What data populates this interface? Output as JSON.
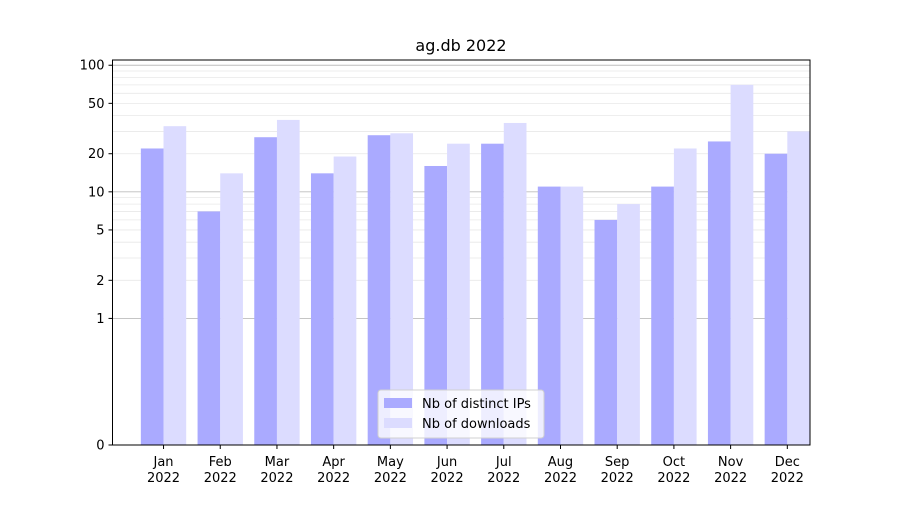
{
  "chart_data": {
    "type": "bar",
    "title": "ag.db 2022",
    "xlabel": "",
    "ylabel": "",
    "y_scale": "symlog",
    "ylim": [
      0,
      110
    ],
    "y_ticks": [
      {
        "value": 0,
        "label": "0"
      },
      {
        "value": 1,
        "label": "1"
      },
      {
        "value": 2,
        "label": "2"
      },
      {
        "value": 5,
        "label": "5"
      },
      {
        "value": 10,
        "label": "10"
      },
      {
        "value": 20,
        "label": "20"
      },
      {
        "value": 50,
        "label": "50"
      },
      {
        "value": 100,
        "label": "100"
      }
    ],
    "grid": true,
    "legend_position": "bottom-center",
    "categories": [
      {
        "month": "Jan",
        "year": "2022"
      },
      {
        "month": "Feb",
        "year": "2022"
      },
      {
        "month": "Mar",
        "year": "2022"
      },
      {
        "month": "Apr",
        "year": "2022"
      },
      {
        "month": "May",
        "year": "2022"
      },
      {
        "month": "Jun",
        "year": "2022"
      },
      {
        "month": "Jul",
        "year": "2022"
      },
      {
        "month": "Aug",
        "year": "2022"
      },
      {
        "month": "Sep",
        "year": "2022"
      },
      {
        "month": "Oct",
        "year": "2022"
      },
      {
        "month": "Nov",
        "year": "2022"
      },
      {
        "month": "Dec",
        "year": "2022"
      }
    ],
    "series": [
      {
        "name": "Nb of distinct IPs",
        "color": "#aaaaff",
        "values": [
          22,
          7,
          27,
          14,
          28,
          16,
          24,
          11,
          6,
          11,
          25,
          20
        ]
      },
      {
        "name": "Nb of downloads",
        "color": "#dcdcff",
        "values": [
          33,
          14,
          37,
          19,
          29,
          24,
          35,
          11,
          8,
          22,
          70,
          30
        ]
      }
    ]
  }
}
